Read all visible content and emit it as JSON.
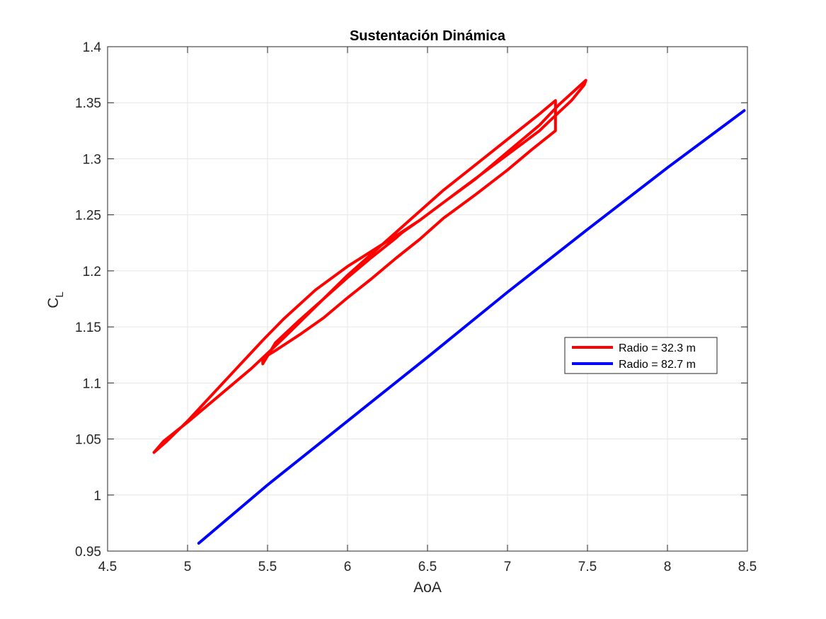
{
  "chart_data": {
    "type": "line",
    "title": "Sustentación Dinámica",
    "xlabel": "AoA",
    "ylabel_main": "C",
    "ylabel_sub": "L",
    "xlim": [
      4.5,
      8.5
    ],
    "ylim": [
      0.95,
      1.4
    ],
    "xticks": [
      4.5,
      5,
      5.5,
      6,
      6.5,
      7,
      7.5,
      8,
      8.5
    ],
    "xtick_labels": [
      "4.5",
      "5",
      "5.5",
      "6",
      "6.5",
      "7",
      "7.5",
      "8",
      "8.5"
    ],
    "yticks": [
      0.95,
      1,
      1.05,
      1.1,
      1.15,
      1.2,
      1.25,
      1.3,
      1.35,
      1.4
    ],
    "ytick_labels": [
      "0.95",
      "1",
      "1.05",
      "1.1",
      "1.15",
      "1.2",
      "1.25",
      "1.3",
      "1.35",
      "1.4"
    ],
    "grid": true,
    "legend_position": "right",
    "series": [
      {
        "name": "Radio = 32.3 m",
        "color": "#ff0000",
        "x": [
          4.79,
          4.87,
          5.0,
          5.15,
          5.3,
          5.47,
          5.6,
          5.8,
          6.0,
          6.2,
          6.3,
          6.45,
          6.6,
          6.8,
          7.0,
          7.2,
          7.32,
          7.49,
          7.48,
          7.4,
          7.28,
          7.2,
          7.05,
          6.9,
          6.75,
          6.6,
          6.45,
          6.34,
          6.3,
          6.15,
          6.0,
          5.85,
          5.7,
          5.55,
          5.47,
          5.47,
          5.55,
          5.7,
          5.85,
          6.0,
          6.15,
          6.3,
          6.45,
          6.6,
          6.8,
          7.0,
          7.15,
          7.3,
          7.3,
          7.2,
          7.05,
          6.9,
          6.75,
          6.6,
          6.45,
          6.3,
          6.15,
          6.0,
          5.8,
          5.6,
          5.4,
          5.2,
          5.0,
          4.85,
          4.79
        ],
        "y": [
          1.038,
          1.048,
          1.066,
          1.089,
          1.112,
          1.138,
          1.157,
          1.183,
          1.204,
          1.222,
          1.231,
          1.245,
          1.261,
          1.282,
          1.306,
          1.33,
          1.348,
          1.37,
          1.366,
          1.352,
          1.336,
          1.325,
          1.309,
          1.293,
          1.277,
          1.261,
          1.245,
          1.234,
          1.229,
          1.212,
          1.194,
          1.175,
          1.156,
          1.136,
          1.117,
          1.122,
          1.129,
          1.143,
          1.158,
          1.176,
          1.193,
          1.211,
          1.228,
          1.247,
          1.268,
          1.29,
          1.308,
          1.325,
          1.352,
          1.34,
          1.323,
          1.306,
          1.289,
          1.272,
          1.253,
          1.234,
          1.215,
          1.196,
          1.168,
          1.14,
          1.113,
          1.089,
          1.065,
          1.048,
          1.038
        ]
      },
      {
        "name": "Radio = 82.7 m",
        "color": "#0000ff",
        "x": [
          5.07,
          5.5,
          6.0,
          6.5,
          7.0,
          7.5,
          8.0,
          8.48
        ],
        "y": [
          0.957,
          1.009,
          1.066,
          1.123,
          1.181,
          1.237,
          1.292,
          1.343
        ]
      }
    ]
  }
}
